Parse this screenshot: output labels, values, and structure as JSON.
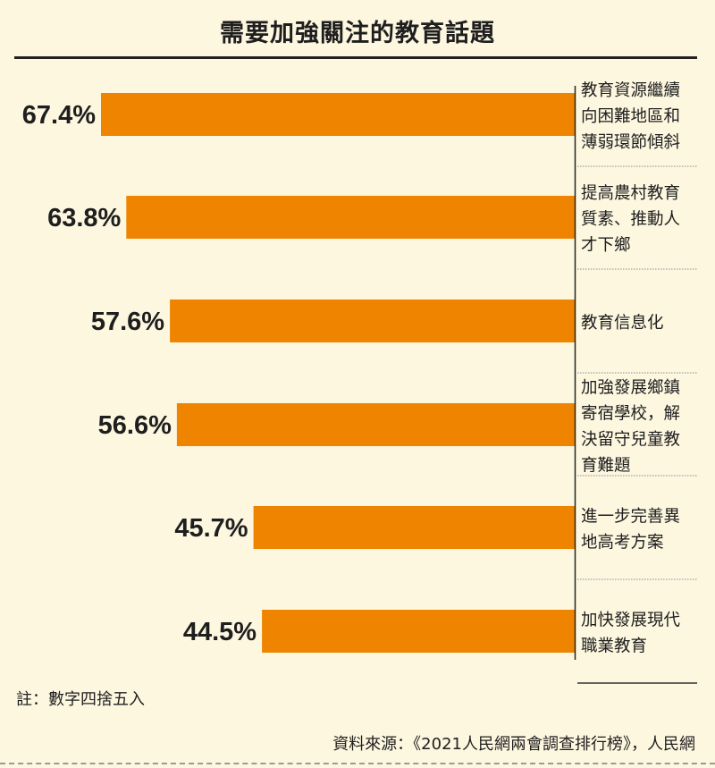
{
  "chart_data": {
    "type": "bar",
    "orientation": "horizontal",
    "title": "需要加強關注的教育話題",
    "value_unit": "%",
    "categories": [
      "教育資源繼續向困難地區和薄弱環節傾斜",
      "提高農村教育質素、推動人才下鄉",
      "教育信息化",
      "加強發展鄉鎮寄宿學校，解決留守兒童教育難題",
      "進一步完善異地高考方案",
      "加快發展現代職業教育"
    ],
    "category_lines": [
      [
        "教育資源繼續",
        "向困難地區和",
        "薄弱環節傾斜"
      ],
      [
        "提高農村教育",
        "質素、推動人",
        "才下鄉"
      ],
      [
        "教育信息化"
      ],
      [
        "加強發展鄉鎮",
        "寄宿學校，解",
        "決留守兒童教",
        "育難題"
      ],
      [
        "進一步完善異",
        "地高考方案"
      ],
      [
        "加快發展現代",
        "職業教育"
      ]
    ],
    "values": [
      67.4,
      63.8,
      57.6,
      56.6,
      45.7,
      44.5
    ],
    "value_labels": [
      "67.4%",
      "63.8%",
      "57.6%",
      "56.6%",
      "45.7%",
      "44.5%"
    ],
    "bar_color": "#ee8400",
    "xlim": [
      0,
      100
    ],
    "bar_direction": "right-to-left",
    "grid": false,
    "legend": "none"
  },
  "note": "註：數字四捨五入",
  "source": "資料來源：《2021人民網兩會調查排行榜》，人民網"
}
